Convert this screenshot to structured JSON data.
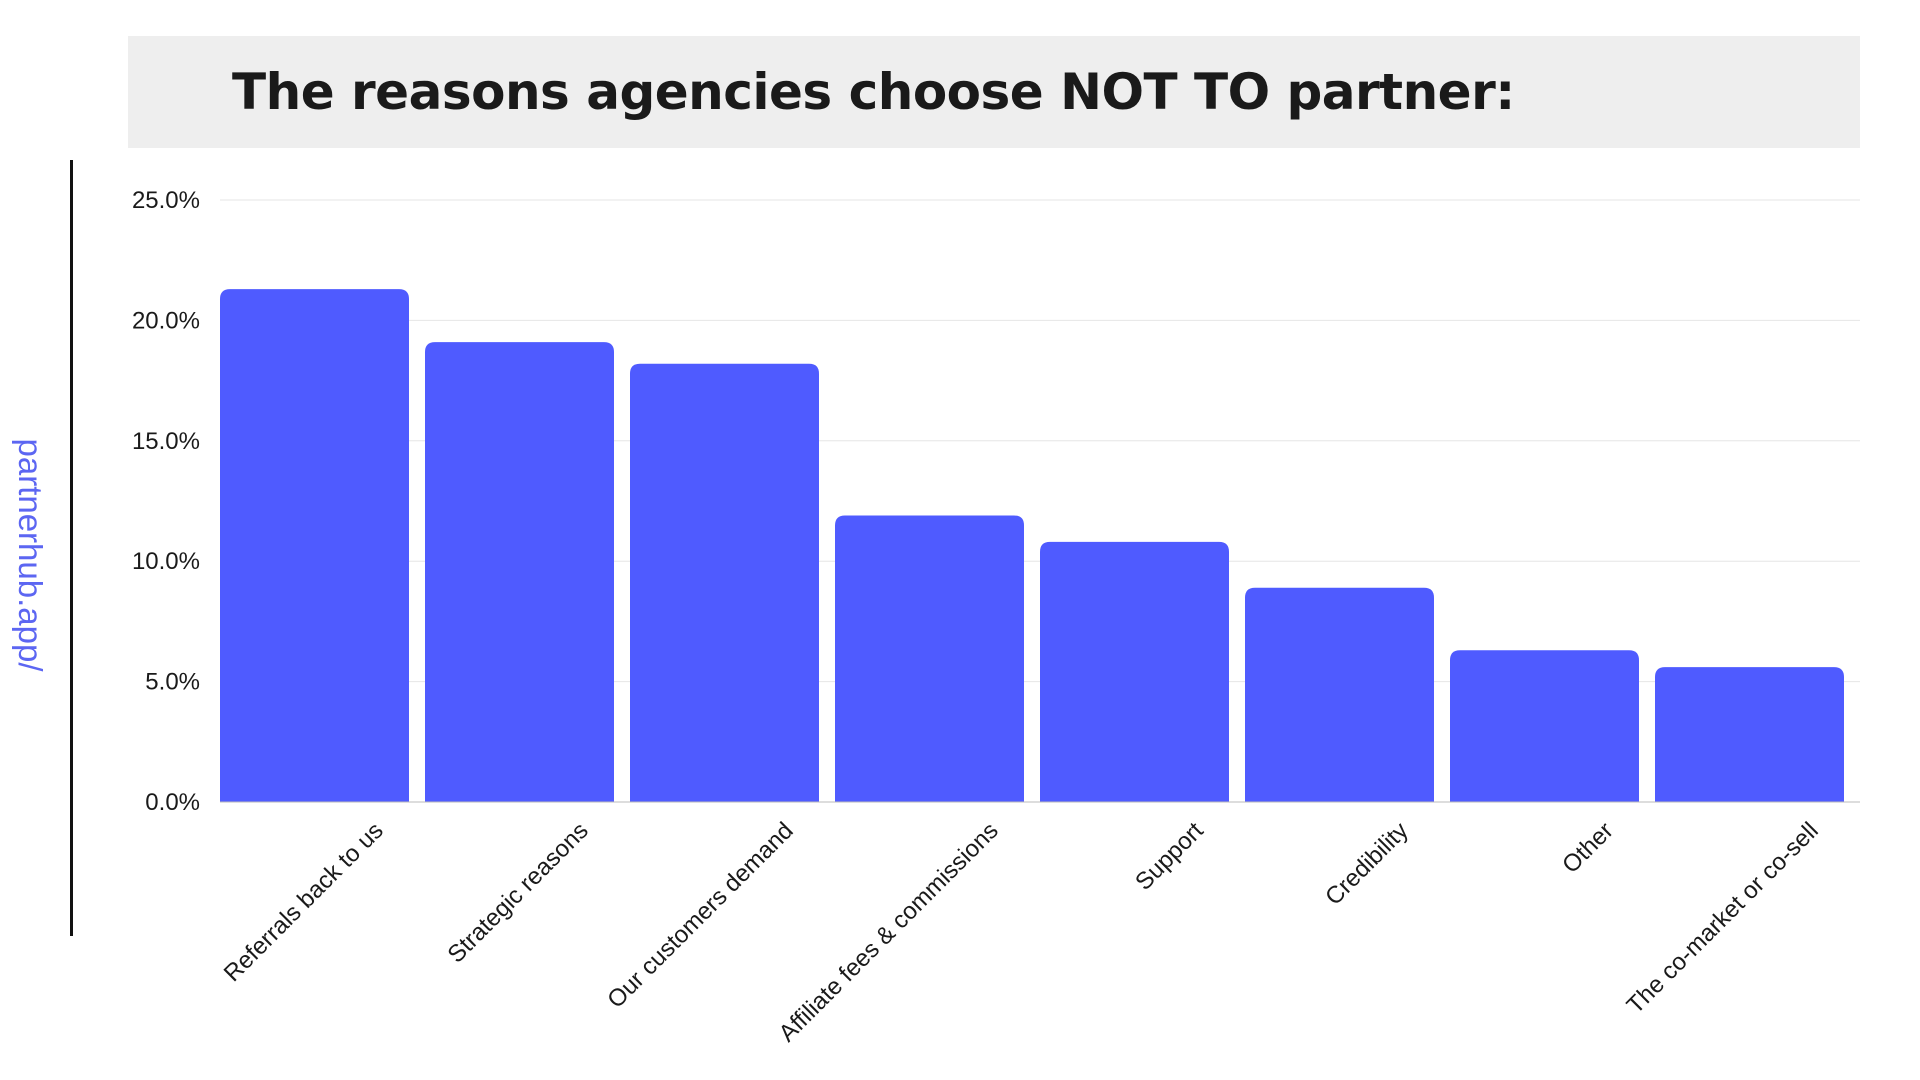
{
  "header": {
    "title": "The reasons agencies choose NOT TO partner:"
  },
  "watermark": {
    "text": "partnerhub.app/",
    "color": "#5c66f2"
  },
  "colors": {
    "bar": "#4f5bff",
    "grid": "#e6e6e6",
    "axis": "#bbbbbb",
    "text": "#1a1a1a"
  },
  "chart_data": {
    "type": "bar",
    "title": "The reasons agencies choose NOT TO partner:",
    "categories": [
      "Referrals back to us",
      "Strategic reasons",
      "Our customers demand",
      "Affiliate fees & commissions",
      "Support",
      "Credibility",
      "Other",
      "The co-market or co-sell"
    ],
    "values": [
      21.3,
      19.1,
      18.2,
      11.9,
      10.8,
      8.9,
      6.3,
      5.6
    ],
    "yticks": [
      "0.0%",
      "5.0%",
      "10.0%",
      "15.0%",
      "20.0%",
      "25.0%"
    ],
    "ylim": [
      0,
      25
    ],
    "xlabel": "",
    "ylabel": "",
    "grid": true,
    "legend": "none"
  }
}
